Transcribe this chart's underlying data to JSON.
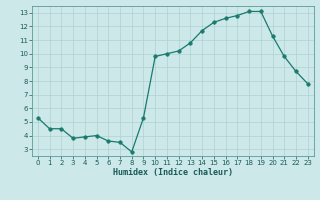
{
  "x": [
    0,
    1,
    2,
    3,
    4,
    5,
    6,
    7,
    8,
    9,
    10,
    11,
    12,
    13,
    14,
    15,
    16,
    17,
    18,
    19,
    20,
    21,
    22,
    23
  ],
  "y": [
    5.3,
    4.5,
    4.5,
    3.8,
    3.9,
    4.0,
    3.6,
    3.5,
    2.8,
    5.3,
    9.8,
    10.0,
    10.2,
    10.8,
    11.7,
    12.3,
    12.6,
    12.8,
    13.1,
    13.1,
    11.3,
    9.8,
    8.7,
    7.8
  ],
  "xlabel": "Humidex (Indice chaleur)",
  "xlim": [
    -0.5,
    23.5
  ],
  "ylim": [
    2.5,
    13.5
  ],
  "yticks": [
    3,
    4,
    5,
    6,
    7,
    8,
    9,
    10,
    11,
    12,
    13
  ],
  "xticks": [
    0,
    1,
    2,
    3,
    4,
    5,
    6,
    7,
    8,
    9,
    10,
    11,
    12,
    13,
    14,
    15,
    16,
    17,
    18,
    19,
    20,
    21,
    22,
    23
  ],
  "line_color": "#1a7a6e",
  "marker_size": 2.5,
  "bg_color": "#cce8e8",
  "grid_color": "#b0d0d0",
  "fig_bg": "#cce8e8",
  "tick_color": "#1a5a5a",
  "tick_fontsize": 5.0,
  "xlabel_fontsize": 6.0,
  "spine_color": "#5a9a9a"
}
